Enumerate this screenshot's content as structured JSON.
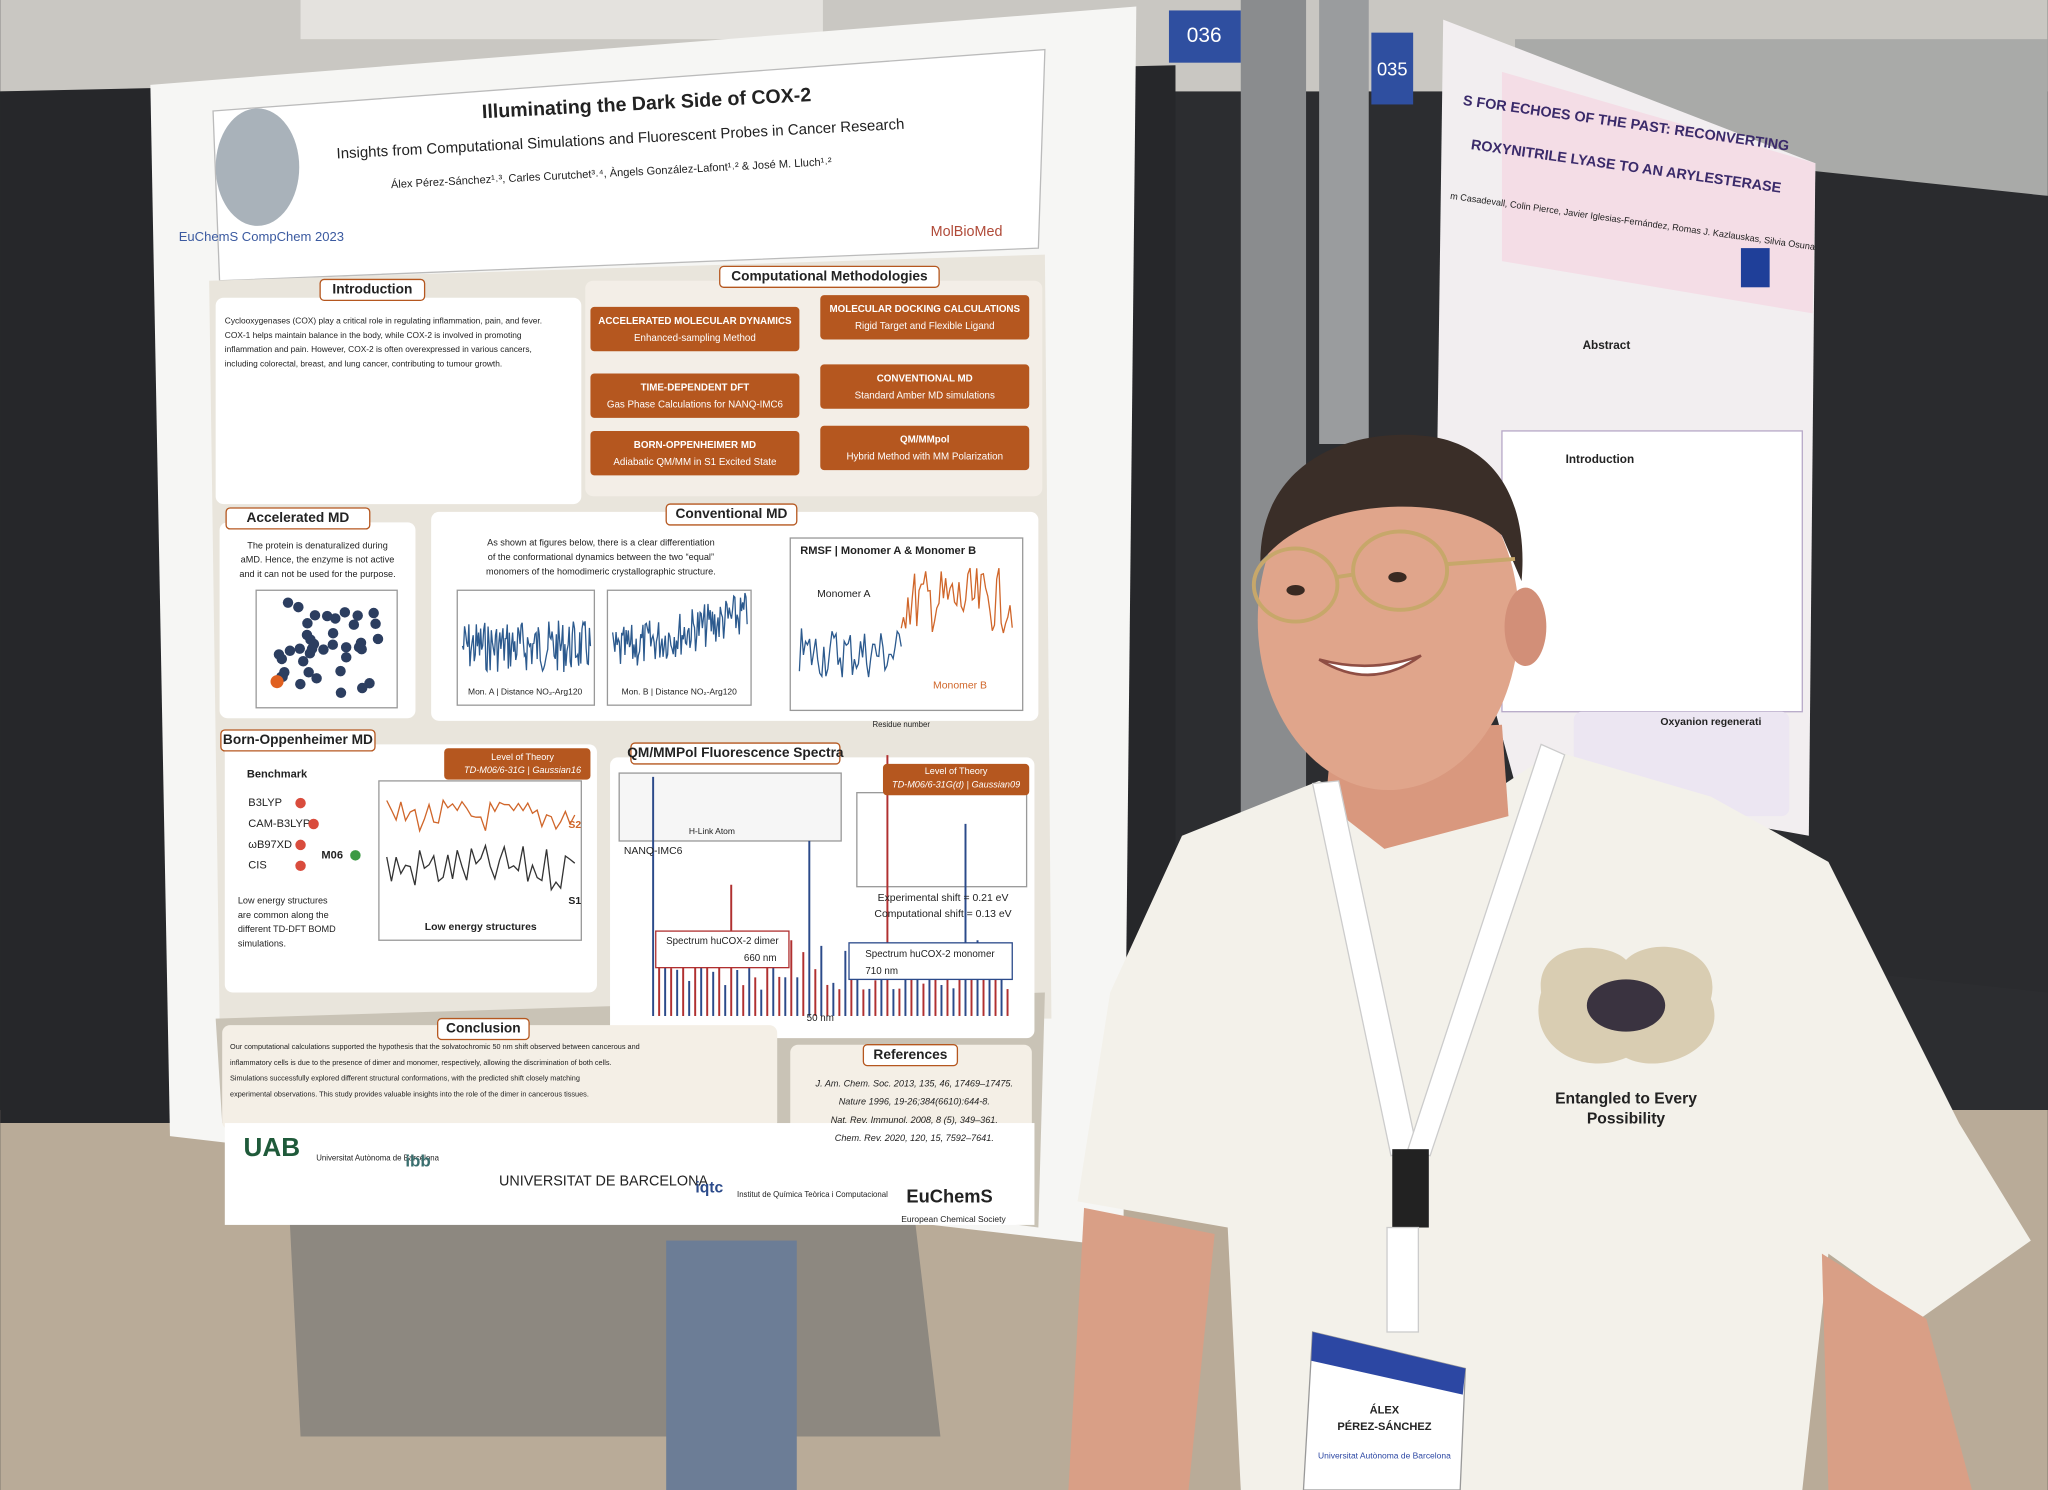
{
  "booth_numbers": [
    "036",
    "035"
  ],
  "poster": {
    "title": "Illuminating the Dark Side of COX-2",
    "subtitle": "Insights from Computational Simulations and Fluorescent Probes in Cancer Research",
    "authors": "Álex Pérez-Sánchez¹˒³, Carles Curutchet³˒⁴, Àngels González-Lafont¹˒² & José M. Lluch¹˒²",
    "conference": "EuChemS CompChem 2023",
    "lab_logo": "MolBioMed",
    "introduction": {
      "heading": "Introduction",
      "lines": [
        "Cyclooxygenases (COX) play a critical role in regulating inflammation, pain, and fever.",
        "COX-1 helps maintain balance in the body, while COX-2 is involved in promoting",
        "inflammation and pain. However, COX-2 is often overexpressed in various cancers,",
        "including colorectal, breast, and lung cancer, contributing to tumour growth."
      ]
    },
    "methodologies": {
      "heading": "Computational Methodologies",
      "boxes": [
        {
          "title": "ACCELERATED MOLECULAR DYNAMICS",
          "subtitle": "Enhanced-sampling Method"
        },
        {
          "title": "MOLECULAR DOCKING CALCULATIONS",
          "subtitle": "Rigid Target and Flexible Ligand"
        },
        {
          "title": "TIME-DEPENDENT DFT",
          "subtitle": "Gas Phase Calculations for NANQ-IMC6"
        },
        {
          "title": "CONVENTIONAL MD",
          "subtitle": "Standard Amber MD simulations"
        },
        {
          "title": "BORN-OPPENHEIMER MD",
          "subtitle": "Adiabatic QM/MM in S1 Excited State"
        },
        {
          "title": "QM/MMpol",
          "subtitle": "Hybrid Method with MM Polarization"
        }
      ]
    },
    "accelerated_md": {
      "heading": "Accelerated MD",
      "lines": [
        "The protein is denaturalized during",
        "aMD. Hence, the enzyme is not active",
        "and it can not be used for the purpose."
      ]
    },
    "conventional_md": {
      "heading": "Conventional MD",
      "lines": [
        "As shown at figures below, there is a clear differentiation",
        "of the conformational dynamics between the two “equal”",
        "monomers of the homodimeric crystallographic structure."
      ],
      "plot_captions": [
        "Mon. A | Distance NO₂-Arg120",
        "Mon. B | Distance NO₂-Arg120"
      ],
      "rmsf_title": "RMSF | Monomer A & Monomer B",
      "monomer_a": "Monomer A",
      "monomer_b": "Monomer B",
      "rmsf_xlabel": "Residue number"
    },
    "born_oppenheimer": {
      "heading": "Born-Oppenheimer MD",
      "benchmark": "Benchmark",
      "rejected": [
        "B3LYP",
        "CAM-B3LYP",
        "ωB97XD",
        "CIS"
      ],
      "chosen": "M06",
      "level_of_theory": "Level of Theory",
      "method": "TD-M06/6-31G | Gaussian16",
      "plot_label": "Low energy structures",
      "s2": "S2",
      "s1": "S1",
      "lines": [
        "Low energy structures",
        "are common along the",
        "different TD-DFT BOMD",
        "simulations."
      ]
    },
    "fluorescence": {
      "heading": "QM/MMPol Fluorescence Spectra",
      "level_of_theory": "Level of Theory",
      "method": "TD-M06/6-31G(d) | Gaussian09",
      "probe": "NANQ-IMC6",
      "link_atom": "H-Link Atom",
      "experimental": "Experimental shift = 0.21 eV",
      "computational": "Computational shift = 0.13 eV",
      "dimer": "Spectrum huCOX-2 dimer",
      "dimer_nm": "660 nm",
      "monomer": "Spectrum huCOX-2 monomer",
      "monomer_nm": "710 nm",
      "shift": "50 nm"
    },
    "conclusion": {
      "heading": "Conclusion",
      "lines": [
        "Our computational calculations supported the hypothesis that the solvatochromic 50 nm shift observed between cancerous and",
        "inflammatory cells is due to the presence of dimer and monomer, respectively, allowing the discrimination of both cells.",
        "Simulations successfully explored different structural conformations, with the predicted shift closely matching",
        "experimental observations. This study provides valuable insights into the role of the dimer in cancerous tissues."
      ]
    },
    "references": {
      "heading": "References",
      "lines": [
        "J. Am. Chem. Soc. 2013, 135, 46, 17469–17475.",
        "Nature 1996, 19-26;384(6610):644-8.",
        "Nat. Rev. Immunol. 2008, 8 (5), 349–361.",
        "Chem. Rev. 2020, 120, 15, 7592–7641."
      ]
    },
    "footer": [
      "UAB",
      "Universitat Autònoma de Barcelona",
      "ibb",
      "UNIVERSITAT DE BARCELONA",
      "iqtc",
      "Institut de Química Teòrica i Computacional",
      "EuChemS",
      "European Chemical Society"
    ]
  },
  "second_poster": {
    "title_lines": [
      "S FOR ECHOES OF THE PAST: RECONVERTING",
      "ROXYNITRILE LYASE TO AN ARYLESTERASE"
    ],
    "authors": "m Casadevall, Colin Pierce, Javier Iglesias-Fernández, Romas J. Kazlauskas, Silvia Osuna",
    "abstract": "Abstract",
    "introduction": "Introduction",
    "oxyanion": "Oxyanion regenerati"
  },
  "badge": {
    "name_first": "ÁLEX",
    "name_last": "PÉREZ-SÁNCHEZ",
    "affiliation": "Universitat Autònoma de Barcelona"
  },
  "shirt": [
    "Entangled to Every",
    "Possibility"
  ]
}
